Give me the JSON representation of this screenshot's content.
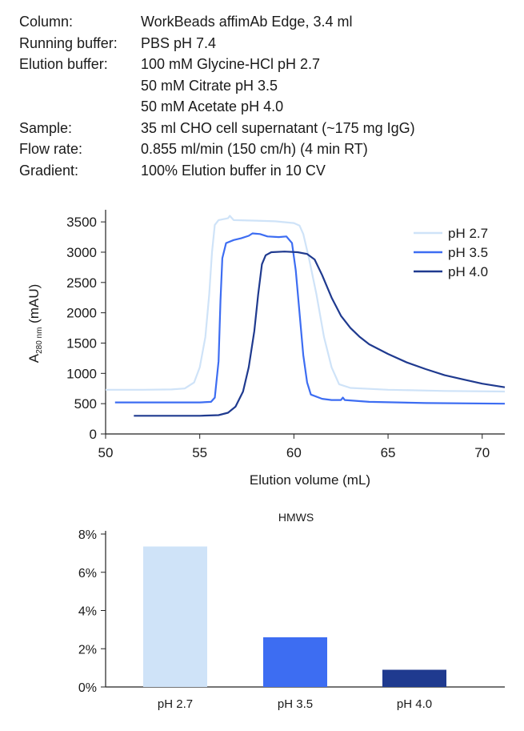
{
  "conditions": [
    {
      "key": "Column:",
      "value": "WorkBeads affimAb Edge, 3.4 ml"
    },
    {
      "key": "Running buffer:",
      "value": "PBS pH 7.4"
    },
    {
      "key": "Elution buffer:",
      "value": "100 mM Glycine-HCl pH 2.7"
    },
    {
      "key": "",
      "value": "50 mM Citrate pH 3.5"
    },
    {
      "key": "",
      "value": "50 mM Acetate pH 4.0"
    },
    {
      "key": "Sample:",
      "value": "35 ml CHO cell supernatant (~175 mg IgG)"
    },
    {
      "key": "Flow rate:",
      "value": "0.855 ml/min (150 cm/h) (4 min RT)"
    },
    {
      "key": "Gradient:",
      "value": "100% Elution buffer in 10 CV"
    }
  ],
  "colors": {
    "pH 2.7": "#cfe3f8",
    "pH 3.5": "#3d6df2",
    "pH 4.0": "#1f3a8f"
  },
  "chart_data": [
    {
      "type": "line",
      "title": "",
      "xlabel": "Elution volume (mL)",
      "ylabel_main": "A",
      "ylabel_sub": "280 nm",
      "ylabel_unit": " (mAU)",
      "xlim": [
        50,
        71.2
      ],
      "ylim": [
        0,
        3700
      ],
      "xticks": [
        50,
        55,
        60,
        65,
        70
      ],
      "yticks": [
        0,
        500,
        1000,
        1500,
        2000,
        2500,
        3000,
        3500
      ],
      "legend_position": "top-right",
      "series": [
        {
          "name": "pH 2.7",
          "points": [
            [
              50,
              730
            ],
            [
              52,
              730
            ],
            [
              53.5,
              735
            ],
            [
              54.2,
              750
            ],
            [
              54.7,
              850
            ],
            [
              55.0,
              1100
            ],
            [
              55.3,
              1600
            ],
            [
              55.5,
              2300
            ],
            [
              55.65,
              3000
            ],
            [
              55.8,
              3450
            ],
            [
              56.0,
              3530
            ],
            [
              56.5,
              3560
            ],
            [
              56.6,
              3600
            ],
            [
              56.8,
              3530
            ],
            [
              58,
              3520
            ],
            [
              59,
              3510
            ],
            [
              60,
              3480
            ],
            [
              60.3,
              3440
            ],
            [
              60.5,
              3300
            ],
            [
              60.8,
              2900
            ],
            [
              61.2,
              2300
            ],
            [
              61.6,
              1600
            ],
            [
              62.0,
              1100
            ],
            [
              62.4,
              820
            ],
            [
              63,
              760
            ],
            [
              65,
              730
            ],
            [
              68,
              710
            ],
            [
              71.2,
              700
            ]
          ]
        },
        {
          "name": "pH 3.5",
          "points": [
            [
              50.5,
              520
            ],
            [
              52,
              520
            ],
            [
              55,
              520
            ],
            [
              55.6,
              530
            ],
            [
              55.8,
              600
            ],
            [
              56.0,
              1200
            ],
            [
              56.1,
              2200
            ],
            [
              56.2,
              2900
            ],
            [
              56.4,
              3150
            ],
            [
              56.8,
              3200
            ],
            [
              57.2,
              3230
            ],
            [
              57.6,
              3270
            ],
            [
              57.8,
              3310
            ],
            [
              58.2,
              3300
            ],
            [
              58.6,
              3260
            ],
            [
              59.2,
              3250
            ],
            [
              59.6,
              3260
            ],
            [
              59.9,
              3150
            ],
            [
              60.1,
              2700
            ],
            [
              60.3,
              2000
            ],
            [
              60.5,
              1300
            ],
            [
              60.7,
              850
            ],
            [
              60.9,
              650
            ],
            [
              61.5,
              580
            ],
            [
              62,
              560
            ],
            [
              62.5,
              560
            ],
            [
              62.6,
              600
            ],
            [
              62.7,
              560
            ],
            [
              64,
              530
            ],
            [
              67,
              510
            ],
            [
              71.2,
              500
            ]
          ]
        },
        {
          "name": "pH 4.0",
          "points": [
            [
              51.5,
              300
            ],
            [
              53,
              300
            ],
            [
              55,
              300
            ],
            [
              56,
              310
            ],
            [
              56.5,
              350
            ],
            [
              56.9,
              450
            ],
            [
              57.3,
              700
            ],
            [
              57.6,
              1100
            ],
            [
              57.9,
              1700
            ],
            [
              58.1,
              2300
            ],
            [
              58.3,
              2800
            ],
            [
              58.5,
              2950
            ],
            [
              58.8,
              3000
            ],
            [
              59.5,
              3010
            ],
            [
              60.2,
              3000
            ],
            [
              60.7,
              2970
            ],
            [
              61.1,
              2880
            ],
            [
              61.5,
              2620
            ],
            [
              62.0,
              2250
            ],
            [
              62.5,
              1950
            ],
            [
              63,
              1750
            ],
            [
              63.5,
              1600
            ],
            [
              64,
              1480
            ],
            [
              65,
              1320
            ],
            [
              66,
              1180
            ],
            [
              67,
              1070
            ],
            [
              68,
              970
            ],
            [
              69,
              900
            ],
            [
              70,
              830
            ],
            [
              71.2,
              770
            ]
          ]
        }
      ]
    },
    {
      "type": "bar",
      "title": "HMWS",
      "categories": [
        "pH 2.7",
        "pH 3.5",
        "pH 4.0"
      ],
      "values": [
        7.35,
        2.6,
        0.9
      ],
      "ylim": [
        0,
        8
      ],
      "yticks": [
        0,
        2,
        4,
        6,
        8
      ],
      "ytick_labels": [
        "0%",
        "2%",
        "4%",
        "6%",
        "8%"
      ],
      "colors": [
        "#cfe3f8",
        "#3d6df2",
        "#1f3a8f"
      ]
    }
  ]
}
